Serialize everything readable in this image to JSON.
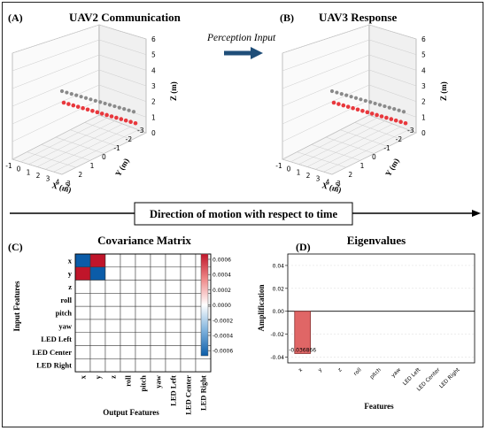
{
  "panels": {
    "a": {
      "letter": "(A)",
      "title": "UAV2 Communication"
    },
    "b": {
      "letter": "(B)",
      "title": "UAV3 Response"
    },
    "c": {
      "letter": "(C)",
      "title": "Covariance Matrix"
    },
    "d": {
      "letter": "(D)",
      "title": "Eigenvalues"
    }
  },
  "perception_label": "Perception Input",
  "direction_label": "Direction of motion with respect to time",
  "axes3d": {
    "x_label": "X (m)",
    "y_label": "Y (m)",
    "z_label": "Z (m)",
    "x_ticks": [
      "-1",
      "0",
      "1",
      "2",
      "3",
      "4",
      "5"
    ],
    "y_ticks": [
      "-3",
      "-2",
      "-1",
      "0",
      "1",
      "2",
      "3"
    ],
    "z_ticks": [
      "0",
      "1",
      "2",
      "3",
      "4",
      "5",
      "6"
    ],
    "colors": {
      "leader": "#e8383d",
      "follower": "#8a8a8a"
    }
  },
  "colors": {
    "arrow": "#1f4e79",
    "neg": "#1f6fb4",
    "pos": "#d62b3a",
    "bar": "#e06666",
    "bar_edge": "#7a1b1b"
  },
  "chart_data": [
    {
      "type": "heatmap",
      "title": "Covariance Matrix",
      "xlabel": "Output Features",
      "ylabel": "Input Features",
      "features": [
        "x",
        "y",
        "z",
        "roll",
        "pitch",
        "yaw",
        "LED Left",
        "LED Center",
        "LED Right"
      ],
      "nonzero_cells": [
        {
          "row": "x",
          "col": "x",
          "value": -0.0006
        },
        {
          "row": "x",
          "col": "y",
          "value": 0.0006
        },
        {
          "row": "y",
          "col": "x",
          "value": 0.0006
        },
        {
          "row": "y",
          "col": "y",
          "value": -0.0006
        }
      ],
      "other_cells": 0,
      "colorbar_ticks": [
        "0.0006",
        "0.0004",
        "0.0002",
        "0.0000",
        "-0.0002",
        "-0.0004",
        "-0.0006"
      ],
      "vmin": -0.0006,
      "vmax": 0.0006
    },
    {
      "type": "bar",
      "title": "Eigenvalues",
      "xlabel": "Features",
      "ylabel": "Amplification",
      "categories": [
        "x",
        "y",
        "z",
        "roll",
        "pitch",
        "yaw",
        "LED Left",
        "LED Center",
        "LED Right"
      ],
      "values": [
        -0.036866,
        0,
        0,
        0,
        0,
        0,
        0,
        0,
        0
      ],
      "bar_label": "-0.036866",
      "y_ticks": [
        "0.04",
        "0.02",
        "0.00",
        "-0.02",
        "-0.04"
      ],
      "ylim": [
        -0.045,
        0.05
      ],
      "grid": true
    }
  ]
}
